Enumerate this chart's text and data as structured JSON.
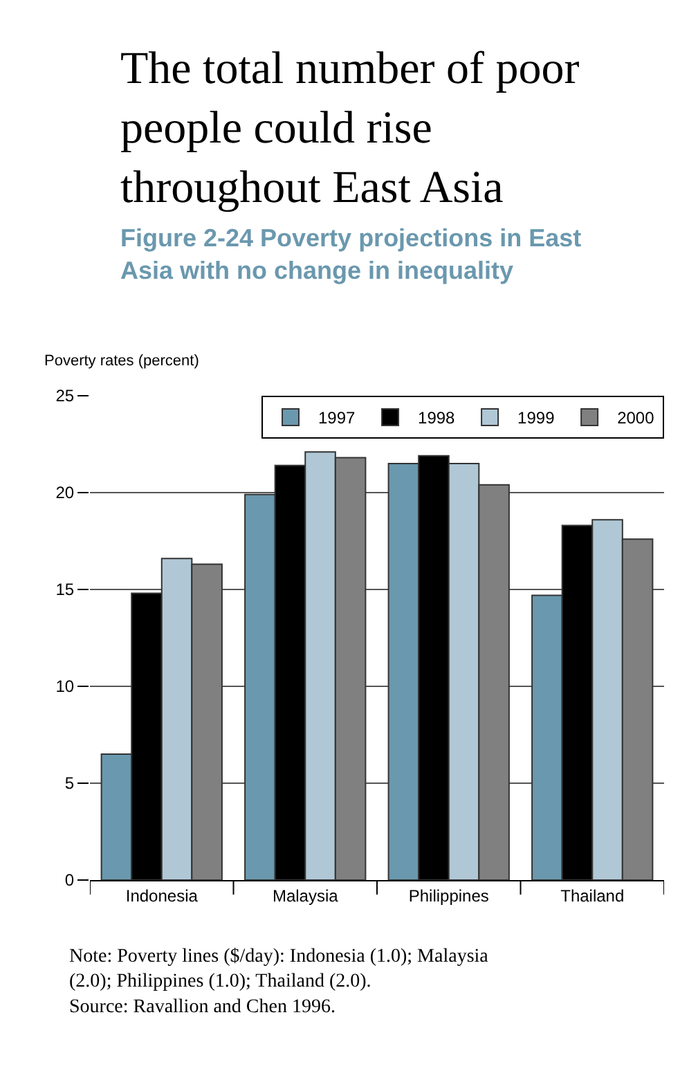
{
  "chart_data": {
    "type": "bar",
    "title": "The total number of poor people could rise throughout East Asia",
    "subtitle": "Figure 2-24 Poverty projections in East Asia with no change in inequality",
    "ylabel": "Poverty rates (percent)",
    "categories": [
      "Indonesia",
      "Malaysia",
      "Philippines",
      "Thailand"
    ],
    "series": [
      {
        "name": "1997",
        "color": "#6a98ae",
        "values": [
          6.5,
          19.9,
          21.5,
          14.7
        ]
      },
      {
        "name": "1998",
        "color": "#000000",
        "values": [
          14.8,
          21.4,
          21.9,
          18.3
        ]
      },
      {
        "name": "1999",
        "color": "#b0c8d6",
        "values": [
          16.6,
          22.1,
          21.5,
          18.6
        ]
      },
      {
        "name": "2000",
        "color": "#808080",
        "values": [
          16.3,
          21.8,
          20.4,
          17.6
        ]
      }
    ],
    "ylim": [
      0,
      25
    ],
    "yticks": [
      0,
      5,
      10,
      15,
      20,
      25
    ],
    "grid": "y",
    "legend": "top right",
    "annotations": [
      "Note: Poverty lines ($/day): Indonesia (1.0); Malaysia (2.0); Philippines (1.0); Thailand (2.0).",
      "Source: Ravallion and Chen 1996."
    ]
  }
}
